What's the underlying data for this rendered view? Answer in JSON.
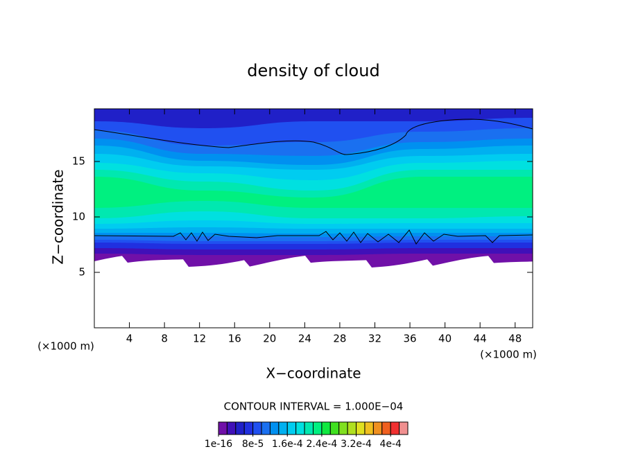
{
  "chart_data": {
    "type": "contour",
    "title": "density of cloud",
    "xlabel": "X−coordinate",
    "ylabel": "Z−coordinate",
    "x_unit_left": "(×1000 m)",
    "x_unit_right": "(×1000 m)",
    "contour_interval": "CONTOUR INTERVAL = 1.000E−04",
    "xlim": [
      0,
      50
    ],
    "xticks": [
      4,
      8,
      12,
      16,
      20,
      24,
      28,
      32,
      36,
      40,
      44,
      48
    ],
    "ylim": [
      0,
      19.75
    ],
    "yticks": [
      5,
      10,
      15
    ],
    "colorbar": {
      "colors": [
        "#7010a8",
        "#4010b8",
        "#2020c8",
        "#2030e0",
        "#2050f0",
        "#1a70f0",
        "#0090f0",
        "#00b0f0",
        "#00ccf0",
        "#00e0e0",
        "#00e8b0",
        "#00f080",
        "#10e840",
        "#40e020",
        "#80e020",
        "#b0e020",
        "#e0e020",
        "#f0c020",
        "#f09020",
        "#f06020",
        "#f03030",
        "#f09090"
      ],
      "lim": [
        0,
        0.00044
      ],
      "ticks": [
        {
          "value": 1e-16,
          "label": "1e-16"
        },
        {
          "value": 8e-05,
          "label": "8e-5"
        },
        {
          "value": 0.00016,
          "label": "1.6e-4"
        },
        {
          "value": 0.00024,
          "label": "2.4e-4"
        },
        {
          "value": 0.00032,
          "label": "3.2e-4"
        },
        {
          "value": 0.0004,
          "label": "4e-4"
        }
      ]
    }
  }
}
